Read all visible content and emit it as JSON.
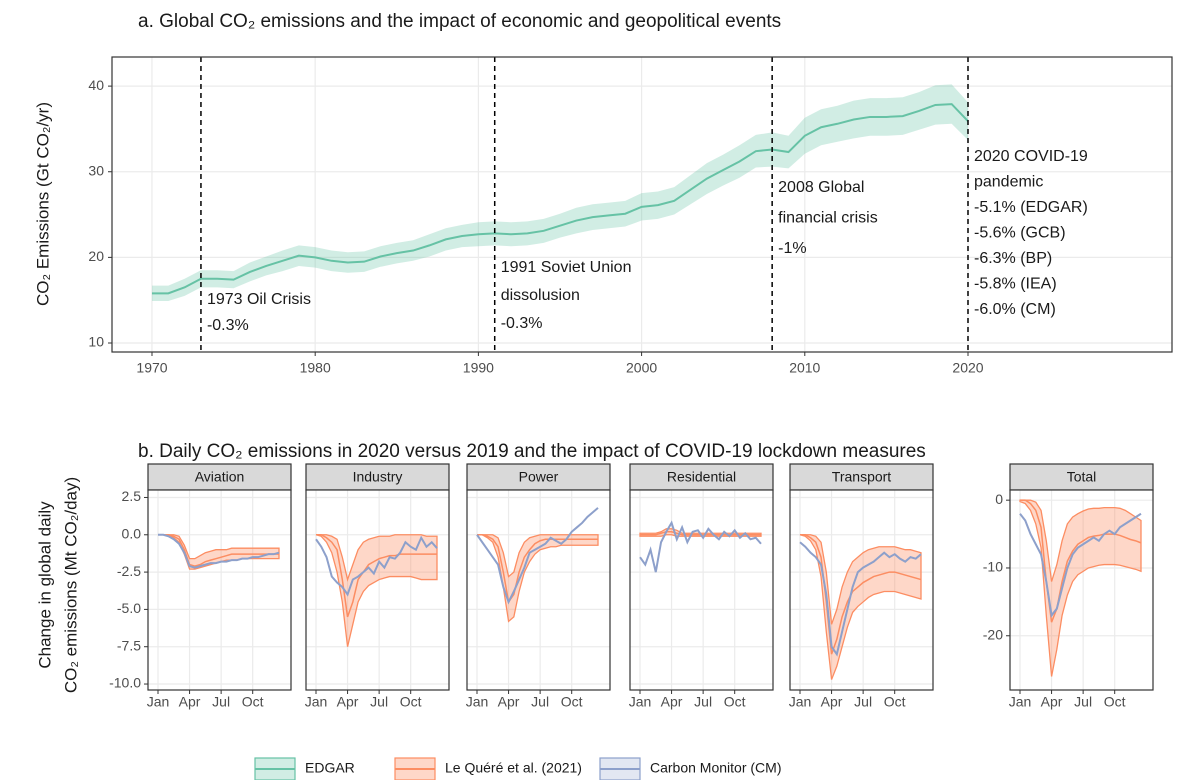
{
  "chart_data": [
    {
      "type": "line",
      "title": "a. Global CO₂ emissions and the impact of economic and geopolitical events",
      "ylabel": "CO₂ Emissions (Gt CO₂/yr)",
      "xlim": [
        1967.55,
        2032.5
      ],
      "xticks": [
        1970,
        1980,
        1990,
        2000,
        2010,
        2020
      ],
      "ylim": [
        8.95,
        43.4
      ],
      "yticks": [
        10,
        20,
        30,
        40
      ],
      "grid": true,
      "x": [
        1970,
        1971,
        1972,
        1973,
        1974,
        1975,
        1976,
        1977,
        1978,
        1979,
        1980,
        1981,
        1982,
        1983,
        1984,
        1985,
        1986,
        1987,
        1988,
        1989,
        1990,
        1991,
        1992,
        1993,
        1994,
        1995,
        1996,
        1997,
        1998,
        1999,
        2000,
        2001,
        2002,
        2003,
        2004,
        2005,
        2006,
        2007,
        2008,
        2009,
        2010,
        2011,
        2012,
        2013,
        2014,
        2015,
        2016,
        2017,
        2018,
        2019,
        2020
      ],
      "series": [
        {
          "name": "EDGAR",
          "color": "#66c2a5",
          "values": [
            15.8,
            15.8,
            16.5,
            17.5,
            17.5,
            17.4,
            18.3,
            19.0,
            19.6,
            20.2,
            20.0,
            19.6,
            19.4,
            19.5,
            20.1,
            20.5,
            20.8,
            21.4,
            22.1,
            22.5,
            22.7,
            22.8,
            22.7,
            22.8,
            23.1,
            23.7,
            24.3,
            24.7,
            24.9,
            25.1,
            25.9,
            26.1,
            26.6,
            27.9,
            29.2,
            30.2,
            31.2,
            32.4,
            32.6,
            32.3,
            34.2,
            35.2,
            35.6,
            36.1,
            36.4,
            36.4,
            36.5,
            37.1,
            37.8,
            37.9,
            35.9
          ],
          "lower": [
            14.9,
            14.9,
            15.5,
            16.5,
            16.5,
            16.4,
            17.2,
            17.9,
            18.4,
            19.0,
            18.8,
            18.4,
            18.2,
            18.3,
            18.9,
            19.3,
            19.6,
            20.1,
            20.8,
            21.2,
            21.3,
            21.4,
            21.3,
            21.4,
            21.7,
            22.3,
            22.8,
            23.2,
            23.4,
            23.6,
            24.3,
            24.5,
            25.0,
            26.2,
            27.4,
            28.4,
            29.3,
            30.5,
            30.6,
            30.4,
            32.1,
            33.1,
            33.5,
            33.9,
            34.2,
            34.2,
            34.3,
            34.9,
            35.5,
            35.6,
            33.7
          ],
          "upper": [
            16.7,
            16.7,
            17.5,
            18.5,
            18.5,
            18.4,
            19.4,
            20.1,
            20.8,
            21.4,
            21.2,
            20.8,
            20.6,
            20.7,
            21.3,
            21.7,
            22.0,
            22.7,
            23.4,
            23.8,
            24.1,
            24.2,
            24.1,
            24.2,
            24.5,
            25.1,
            25.8,
            26.2,
            26.4,
            26.6,
            27.5,
            27.7,
            28.2,
            29.6,
            31.0,
            32.0,
            33.1,
            34.3,
            34.6,
            34.2,
            36.3,
            37.3,
            37.7,
            38.3,
            38.6,
            38.6,
            38.7,
            39.3,
            40.1,
            40.2,
            38.1
          ]
        }
      ],
      "annotations": [
        {
          "x": 1973,
          "lines": [
            "1973 Oil Crisis",
            "-0.3%"
          ]
        },
        {
          "x": 1991,
          "lines": [
            "1991 Soviet Union",
            "dissolusion",
            "-0.3%"
          ]
        },
        {
          "x": 2008,
          "lines": [
            "2008 Global",
            "financial crisis",
            "-1%"
          ]
        },
        {
          "x": 2020,
          "lines": [
            "2020 COVID-19",
            "pandemic",
            "-5.1% (EDGAR)",
            "-5.6% (GCB)",
            "-6.3% (BP)",
            "-5.8% (IEA)",
            "-6.0% (CM)"
          ]
        }
      ]
    },
    {
      "type": "facet",
      "title": "b. Daily CO₂ emissions in 2020 versus 2019 and the impact of COVID-19 lockdown measures",
      "ylabel": [
        "Change in global daily",
        "CO₂ emissions (Mt CO₂/day)"
      ],
      "categories": [
        "Jan",
        null,
        null,
        null,
        null,
        null,
        "Apr",
        null,
        null,
        null,
        null,
        null,
        "Jul",
        null,
        null,
        null,
        null,
        null,
        "Oct",
        null,
        null,
        null,
        null,
        null
      ],
      "ylim": [
        -10.4,
        3.0
      ],
      "yticks": [
        {
          "value": -10,
          "label": "-10.0"
        },
        -7.5,
        {
          "value": -5,
          "label": "-5.0"
        },
        -2.5,
        {
          "value": 0,
          "label": "0.0"
        },
        2.5
      ],
      "grid": true,
      "series": [
        {
          "name": "Le Quéré et al. (2021)",
          "color": "#fc8d62"
        },
        {
          "name": "Carbon Monitor (CM)",
          "color": "#8da0cb"
        }
      ],
      "facets": [
        {
          "name": "Aviation",
          "le_quere": {
            "values": [
              0,
              0,
              0,
              -0.1,
              -0.3,
              -1.0,
              -2.0,
              -2.1,
              -2.0,
              -1.8,
              -1.7,
              -1.6,
              -1.5,
              -1.4,
              -1.3,
              -1.3,
              -1.3,
              -1.3,
              -1.3,
              -1.3,
              -1.3,
              -1.3,
              -1.3,
              -1.3
            ],
            "lower": [
              0,
              0,
              0,
              -0.2,
              -0.5,
              -1.3,
              -2.3,
              -2.3,
              -2.2,
              -2.1,
              -2.0,
              -1.9,
              -1.8,
              -1.7,
              -1.7,
              -1.7,
              -1.6,
              -1.6,
              -1.6,
              -1.6,
              -1.6,
              -1.6,
              -1.6,
              -1.6
            ],
            "upper": [
              0,
              0,
              0,
              0,
              -0.1,
              -0.7,
              -1.6,
              -1.6,
              -1.4,
              -1.2,
              -1.1,
              -1.0,
              -1.0,
              -1.0,
              -0.9,
              -0.9,
              -0.9,
              -0.9,
              -0.9,
              -0.9,
              -0.9,
              -0.9,
              -0.9,
              -0.9
            ]
          },
          "carbon_monitor": {
            "values": [
              0,
              0,
              -0.1,
              -0.3,
              -0.6,
              -1.2,
              -2.1,
              -2.2,
              -2.1,
              -2.0,
              -1.9,
              -1.9,
              -1.8,
              -1.8,
              -1.7,
              -1.7,
              -1.6,
              -1.6,
              -1.5,
              -1.5,
              -1.4,
              -1.3,
              -1.3,
              -1.2
            ]
          }
        },
        {
          "name": "Industry",
          "le_quere": {
            "values": [
              0,
              0,
              -0.2,
              -0.5,
              -1.0,
              -3.0,
              -5.5,
              -4.5,
              -3.0,
              -2.5,
              -2.0,
              -1.8,
              -1.6,
              -1.5,
              -1.4,
              -1.4,
              -1.3,
              -1.3,
              -1.3,
              -1.3,
              -1.3,
              -1.3,
              -1.3,
              -1.3
            ],
            "lower": [
              0,
              -0.1,
              -0.5,
              -1.2,
              -2.5,
              -4.5,
              -7.5,
              -6.0,
              -4.5,
              -3.8,
              -3.4,
              -3.2,
              -3.0,
              -2.9,
              -2.8,
              -2.8,
              -2.8,
              -2.8,
              -2.8,
              -2.9,
              -3.0,
              -3.0,
              -3.0,
              -3.0
            ],
            "upper": [
              0,
              0,
              0,
              -0.1,
              -0.3,
              -1.5,
              -3.0,
              -2.0,
              -1.0,
              -0.5,
              -0.3,
              -0.2,
              -0.1,
              -0.1,
              -0.1,
              0,
              0,
              0,
              0,
              0,
              0,
              -0.1,
              -0.1,
              -0.1
            ]
          },
          "carbon_monitor": {
            "values": [
              -0.3,
              -0.8,
              -1.5,
              -2.8,
              -3.2,
              -3.5,
              -4.0,
              -3.0,
              -2.8,
              -2.5,
              -2.2,
              -2.6,
              -1.8,
              -2.2,
              -1.5,
              -1.6,
              -1.2,
              -0.5,
              -0.8,
              -1.0,
              -0.2,
              -0.8,
              -0.5,
              -0.9
            ]
          }
        },
        {
          "name": "Power",
          "le_quere": {
            "values": [
              0,
              0,
              -0.1,
              -0.3,
              -0.8,
              -2.5,
              -4.5,
              -4.0,
              -2.5,
              -1.5,
              -1.0,
              -0.6,
              -0.4,
              -0.3,
              -0.3,
              -0.3,
              -0.3,
              -0.3,
              -0.3,
              -0.3,
              -0.3,
              -0.3,
              -0.3,
              -0.3
            ],
            "lower": [
              0,
              0,
              -0.2,
              -0.5,
              -1.5,
              -3.5,
              -5.8,
              -5.5,
              -3.8,
              -2.5,
              -1.8,
              -1.3,
              -1.0,
              -0.9,
              -0.8,
              -0.8,
              -0.7,
              -0.7,
              -0.7,
              -0.7,
              -0.7,
              -0.7,
              -0.7,
              -0.7
            ],
            "upper": [
              0,
              0,
              0,
              0,
              -0.2,
              -1.2,
              -2.8,
              -2.5,
              -1.2,
              -0.5,
              -0.2,
              -0.1,
              0,
              0,
              0,
              0,
              0,
              0,
              0,
              0,
              0,
              0,
              0,
              0
            ]
          },
          "carbon_monitor": {
            "values": [
              0,
              -0.5,
              -1.0,
              -1.5,
              -2.0,
              -3.5,
              -4.5,
              -3.8,
              -3.0,
              -2.2,
              -1.2,
              -1.0,
              -0.8,
              -0.6,
              -0.2,
              -0.4,
              -0.6,
              -0.3,
              0.2,
              0.5,
              0.8,
              1.2,
              1.5,
              1.8
            ]
          }
        },
        {
          "name": "Residential",
          "le_quere": {
            "values": [
              0,
              0,
              0,
              0,
              0.1,
              0.2,
              0.2,
              0.1,
              0,
              0,
              0,
              0,
              0,
              0,
              0,
              0,
              0,
              0,
              0,
              0,
              0,
              0,
              0,
              0
            ],
            "lower": [
              -0.1,
              -0.1,
              -0.1,
              -0.1,
              -0.1,
              0,
              0,
              -0.1,
              -0.1,
              -0.1,
              -0.1,
              -0.1,
              -0.1,
              -0.1,
              -0.1,
              -0.1,
              -0.1,
              -0.1,
              -0.1,
              -0.1,
              -0.1,
              -0.1,
              -0.1,
              -0.1
            ],
            "upper": [
              0.1,
              0.1,
              0.1,
              0.1,
              0.2,
              0.4,
              0.4,
              0.3,
              0.1,
              0.1,
              0.1,
              0.1,
              0.1,
              0.1,
              0.1,
              0.1,
              0.1,
              0.1,
              0.1,
              0.1,
              0.1,
              0.1,
              0.1,
              0.1
            ]
          },
          "carbon_monitor": {
            "values": [
              -1.5,
              -2.0,
              -1.0,
              -2.5,
              -0.5,
              0.2,
              0.8,
              -0.3,
              0.5,
              -0.5,
              0.2,
              0.3,
              -0.2,
              0.4,
              0,
              -0.3,
              0.2,
              -0.1,
              0.3,
              -0.2,
              0.1,
              -0.3,
              -0.2,
              -0.6
            ]
          }
        },
        {
          "name": "Transport",
          "le_quere": {
            "values": [
              0,
              0,
              -0.2,
              -0.5,
              -1.5,
              -4.5,
              -8.0,
              -7.0,
              -5.5,
              -4.5,
              -3.8,
              -3.5,
              -3.2,
              -3.0,
              -2.8,
              -2.7,
              -2.6,
              -2.5,
              -2.5,
              -2.6,
              -2.7,
              -2.8,
              -2.9,
              -3.0
            ],
            "lower": [
              0,
              -0.1,
              -0.4,
              -1.0,
              -2.8,
              -6.5,
              -9.7,
              -8.8,
              -7.5,
              -6.2,
              -5.2,
              -4.8,
              -4.5,
              -4.2,
              -4.0,
              -3.9,
              -3.8,
              -3.8,
              -3.8,
              -3.9,
              -4.0,
              -4.1,
              -4.2,
              -4.3
            ],
            "upper": [
              0,
              0,
              0,
              -0.1,
              -0.5,
              -2.5,
              -6.0,
              -5.0,
              -3.5,
              -2.5,
              -1.8,
              -1.5,
              -1.2,
              -1.0,
              -0.9,
              -0.8,
              -0.8,
              -0.8,
              -0.8,
              -0.9,
              -1.0,
              -1.0,
              -1.1,
              -1.2
            ]
          },
          "carbon_monitor": {
            "values": [
              -0.5,
              -0.8,
              -1.2,
              -1.5,
              -2.0,
              -4.0,
              -7.5,
              -8.0,
              -6.5,
              -5.0,
              -3.5,
              -2.5,
              -2.2,
              -2.0,
              -1.8,
              -1.5,
              -1.2,
              -1.5,
              -1.3,
              -1.6,
              -1.8,
              -1.5,
              -1.6,
              -1.3
            ]
          }
        },
        {
          "name": "Total",
          "ylim": [
            -28,
            1.5
          ],
          "yticks": [
            -20,
            -10,
            0
          ],
          "le_quere": {
            "values": [
              0,
              0,
              -0.5,
              -1.5,
              -4,
              -12,
              -18,
              -16,
              -12,
              -9,
              -7.5,
              -6.5,
              -6,
              -5.5,
              -5.3,
              -5.2,
              -5.0,
              -5.0,
              -5.0,
              -5.2,
              -5.5,
              -5.8,
              -6.0,
              -6.3
            ],
            "lower": [
              -0.2,
              -0.5,
              -1.5,
              -3.5,
              -7,
              -17,
              -26,
              -22,
              -17,
              -14,
              -12,
              -11,
              -10.5,
              -10,
              -9.8,
              -9.6,
              -9.5,
              -9.5,
              -9.5,
              -9.6,
              -9.8,
              -10,
              -10.2,
              -10.5
            ],
            "upper": [
              0,
              0,
              0,
              -0.3,
              -1.5,
              -6,
              -12,
              -9.5,
              -6,
              -3.5,
              -2.5,
              -2,
              -1.6,
              -1.3,
              -1.2,
              -1.2,
              -1.1,
              -1.1,
              -1.1,
              -1.2,
              -1.5,
              -2,
              -2.5,
              -3
            ]
          },
          "carbon_monitor": {
            "values": [
              -2,
              -3,
              -5,
              -6.5,
              -8,
              -12,
              -17,
              -16,
              -13,
              -10,
              -8,
              -7,
              -6.5,
              -6,
              -5.5,
              -6,
              -5,
              -4.5,
              -5,
              -4,
              -3.5,
              -3,
              -2.5,
              -2
            ]
          }
        }
      ]
    }
  ]
}
